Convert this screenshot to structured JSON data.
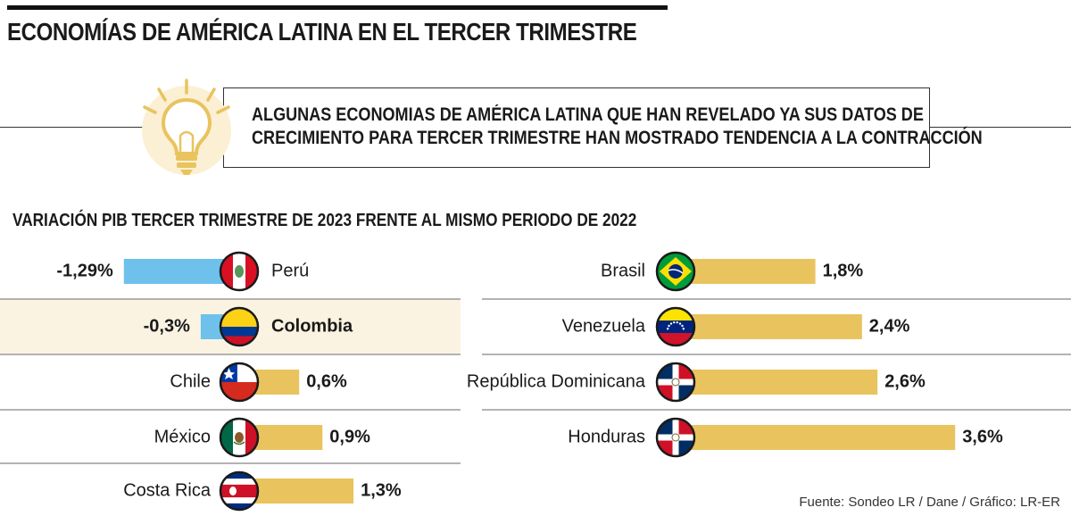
{
  "title": "ECONOMÍAS DE AMÉRICA LATINA EN EL TERCER TRIMESTRE",
  "callout": {
    "line1": "ALGUNAS ECONOMIAS DE AMÉRICA LATINA QUE HAN REVELADO YA SUS DATOS DE",
    "line2": "CRECIMIENTO PARA TERCER TRIMESTRE HAN MOSTRADO TENDENCIA A LA CONTRACCIÓN"
  },
  "source": "Fuente: Sondeo LR / Dane / Gráfico: LR-ER",
  "colors": {
    "positive": "#E9C35E",
    "negative": "#6EC1EB",
    "highlight": "#FBF3E2",
    "divider": "#9a9a9a"
  },
  "icons": {
    "callout": "light-bulb-icon"
  },
  "chart_data": {
    "type": "bar",
    "title": "VARIACIÓN PIB TERCER TRIMESTRE DE 2023 FRENTE AL MISMO PERIODO DE 2022",
    "unit": "%",
    "columns": [
      {
        "rows": [
          {
            "country": "Perú",
            "value": -1.29,
            "label": "-1,29%",
            "flag": "peru-flag-icon",
            "highlight": false
          },
          {
            "country": "Colombia",
            "value": -0.3,
            "label": "-0,3%",
            "flag": "colombia-flag-icon",
            "highlight": true
          },
          {
            "country": "Chile",
            "value": 0.6,
            "label": "0,6%",
            "flag": "chile-flag-icon",
            "highlight": false
          },
          {
            "country": "México",
            "value": 0.9,
            "label": "0,9%",
            "flag": "mexico-flag-icon",
            "highlight": false
          },
          {
            "country": "Costa Rica",
            "value": 1.3,
            "label": "1,3%",
            "flag": "costa-rica-flag-icon",
            "highlight": false
          }
        ]
      },
      {
        "rows": [
          {
            "country": "Brasil",
            "value": 1.8,
            "label": "1,8%",
            "flag": "brazil-flag-icon",
            "highlight": false
          },
          {
            "country": "Venezuela",
            "value": 2.4,
            "label": "2,4%",
            "flag": "venezuela-flag-icon",
            "highlight": false
          },
          {
            "country": "República Dominicana",
            "value": 2.6,
            "label": "2,6%",
            "flag": "dominican-republic-flag-icon",
            "highlight": false
          },
          {
            "country": "Honduras",
            "value": 3.6,
            "label": "3,6%",
            "flag": "dominican-republic-flag-icon",
            "highlight": false
          }
        ]
      }
    ]
  }
}
